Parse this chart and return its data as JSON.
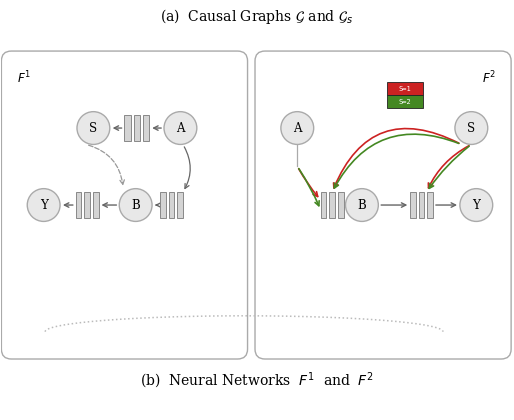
{
  "title_top": "(a)  Causal Graphs $\\mathcal{G}$ and $\\mathcal{G}_s$",
  "title_bottom": "(b)  Neural Networks  $F^1$  and  $F^2$",
  "bg_color": "#ffffff",
  "box_edge_color": "#aaaaaa",
  "node_face_color": "#e8e8e8",
  "node_edge_color": "#aaaaaa",
  "nn_bar_face": "#d4d4d4",
  "nn_bar_edge": "#888888",
  "arrow_color": "#666666",
  "left_label": "$F^1$",
  "right_label": "$F^2$",
  "legend_s1_color": "#cc2222",
  "legend_s2_color": "#448822",
  "legend_s1_label": "S=1",
  "legend_s2_label": "S=2",
  "dashed_color": "#999999",
  "dotted_color": "#bbbbbb"
}
